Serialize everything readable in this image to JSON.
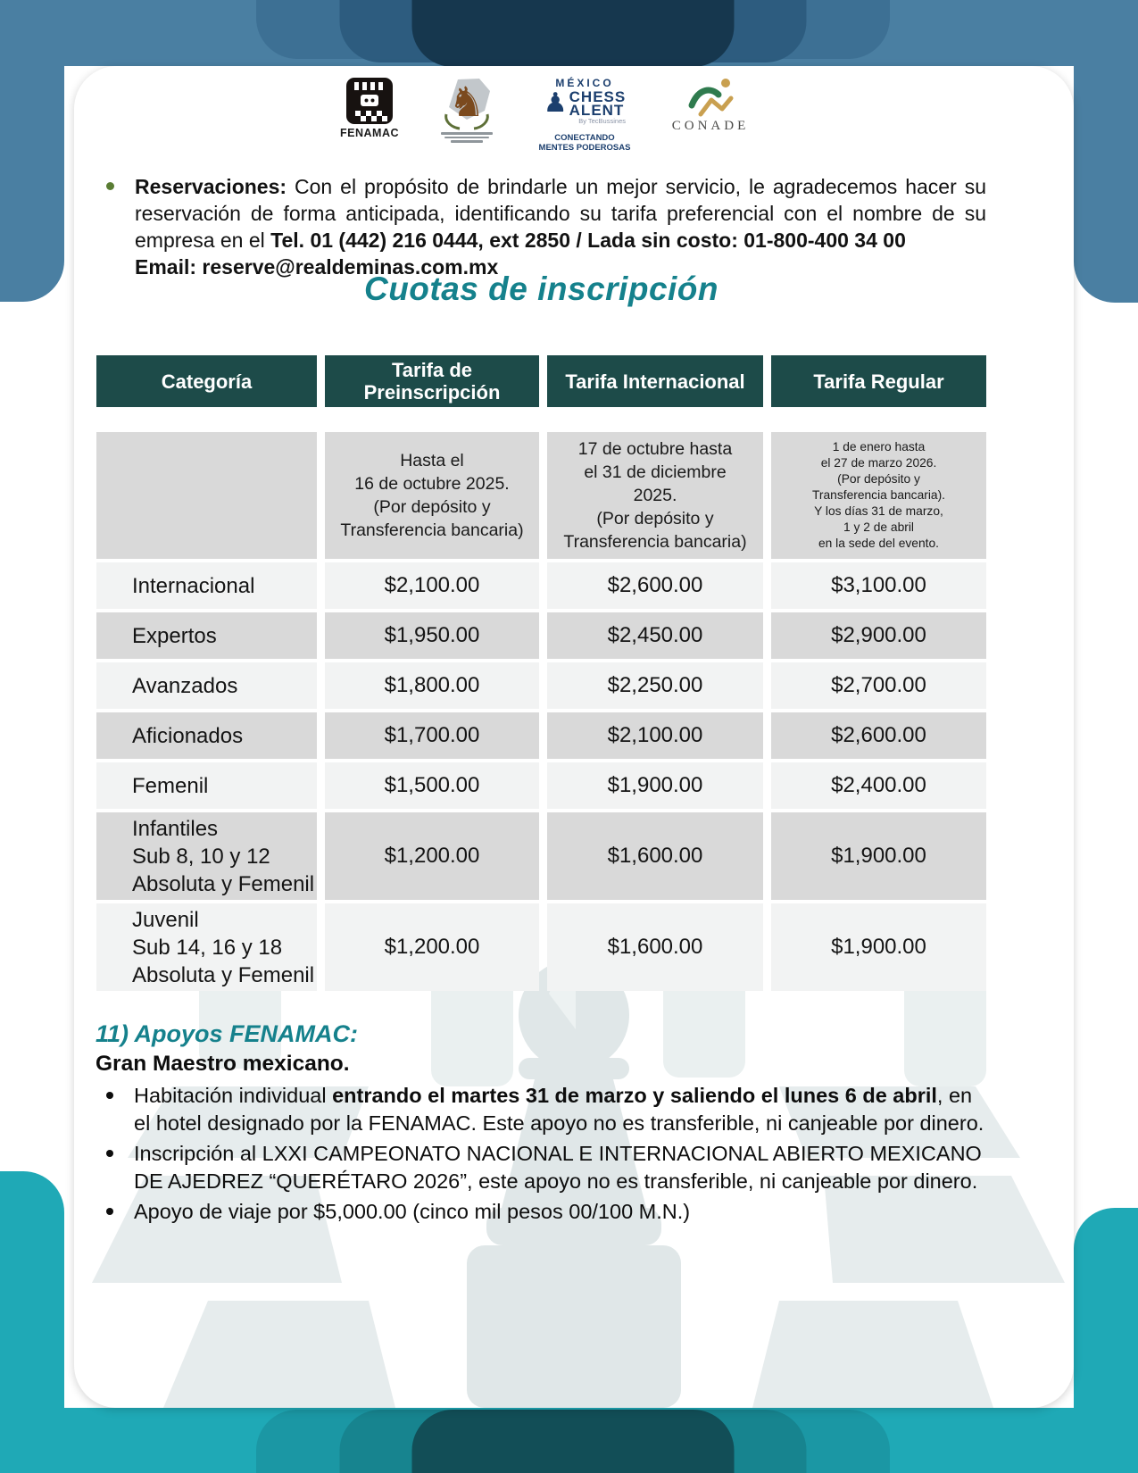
{
  "colors": {
    "top_background": "#4A7FA2",
    "top_pill_dark": "#16374E",
    "bottom_background": "#1FA9B6",
    "bottom_pill_dark": "#124E57",
    "table_header": "#1D4B49",
    "row_gray": "#D9D9D9",
    "row_light": "#F2F3F3",
    "accent_teal": "#15818C",
    "intro_bullet_green": "#5A7D34"
  },
  "logos": {
    "fenamac": {
      "icon": "chess-king-icon",
      "label": "FENAMAC"
    },
    "association": {
      "icon": "chess-knight-icon"
    },
    "chess_talent": {
      "icon": "chess-pawn-icon",
      "country": "MÉXICO",
      "word1": "CHESS",
      "word2": "ALENT",
      "byline": "By TecBussines",
      "tagline1": "CONECTANDO",
      "tagline2": "MENTES PODEROSAS"
    },
    "conade": {
      "icon": "runner-icon",
      "label": "CONADE"
    }
  },
  "intro": {
    "runs": [
      {
        "t": "Reservaciones: ",
        "b": true
      },
      {
        "t": "Con el propósito de brindarle un mejor servicio, le agradecemos hacer su reservación de forma anticipada, identificando su tarifa preferencial con el nombre de su empresa en el ",
        "b": false
      },
      {
        "t": "Tel. 01 (442) 216 0444, ext 2850 / Lada sin costo: 01-800-400 34 00",
        "b": true
      },
      {
        "br": true
      },
      {
        "t": "Email: reserve@realdeminas.com.mx",
        "b": true
      }
    ]
  },
  "title": "Cuotas de inscripción",
  "table": {
    "headers": [
      "Categoría",
      "Tarifa de Preinscripción",
      "Tarifa Internacional",
      "Tarifa Regular"
    ],
    "date_notes": [
      "",
      "Hasta el\n16 de octubre 2025.\n(Por depósito y\nTransferencia bancaria)",
      "17 de octubre hasta\nel 31 de diciembre\n2025.\n(Por depósito y\nTransferencia bancaria)",
      "1 de enero hasta\nel 27 de marzo 2026.\n(Por depósito y\nTransferencia bancaria).\nY los días 31 de marzo,\n1 y 2 de abril\nen la sede del evento."
    ],
    "rows": [
      {
        "category": [
          "Internacional"
        ],
        "values": [
          "$2,100.00",
          "$2,600.00",
          "$3,100.00"
        ],
        "tall": false
      },
      {
        "category": [
          "Expertos"
        ],
        "values": [
          "$1,950.00",
          "$2,450.00",
          "$2,900.00"
        ],
        "tall": false
      },
      {
        "category": [
          "Avanzados"
        ],
        "values": [
          "$1,800.00",
          "$2,250.00",
          "$2,700.00"
        ],
        "tall": false
      },
      {
        "category": [
          "Aficionados"
        ],
        "values": [
          "$1,700.00",
          "$2,100.00",
          "$2,600.00"
        ],
        "tall": false
      },
      {
        "category": [
          "Femenil"
        ],
        "values": [
          "$1,500.00",
          "$1,900.00",
          "$2,400.00"
        ],
        "tall": false
      },
      {
        "category": [
          "Infantiles",
          "Sub 8, 10 y 12",
          "Absoluta y Femenil"
        ],
        "values": [
          "$1,200.00",
          "$1,600.00",
          "$1,900.00"
        ],
        "tall": true
      },
      {
        "category": [
          "Juvenil",
          "Sub 14, 16 y 18",
          "Absoluta y Femenil"
        ],
        "values": [
          "$1,200.00",
          "$1,600.00",
          "$1,900.00"
        ],
        "tall": true
      }
    ]
  },
  "apoyos": {
    "heading": "11) Apoyos FENAMAC:",
    "subheading": "Gran Maestro mexicano.",
    "bullets": [
      {
        "runs": [
          {
            "t": "Habitación individual ",
            "b": false
          },
          {
            "t": "entrando el martes 31 de marzo y saliendo el lunes 6 de abril",
            "b": true
          },
          {
            "t": ", en el hotel designado por la FENAMAC. Este apoyo no es transferible, ni canjeable por dinero.",
            "b": false
          }
        ]
      },
      {
        "runs": [
          {
            "t": "Inscripción al LXXI CAMPEONATO NACIONAL E INTERNACIONAL ABIERTO MEXICANO DE AJEDREZ “QUERÉTARO 2026”, este apoyo no es transferible, ni canjeable por dinero.",
            "b": false
          }
        ]
      },
      {
        "runs": [
          {
            "t": "Apoyo de viaje por $5,000.00 (cinco mil pesos 00/100 M.N.)",
            "b": false
          }
        ]
      }
    ]
  }
}
